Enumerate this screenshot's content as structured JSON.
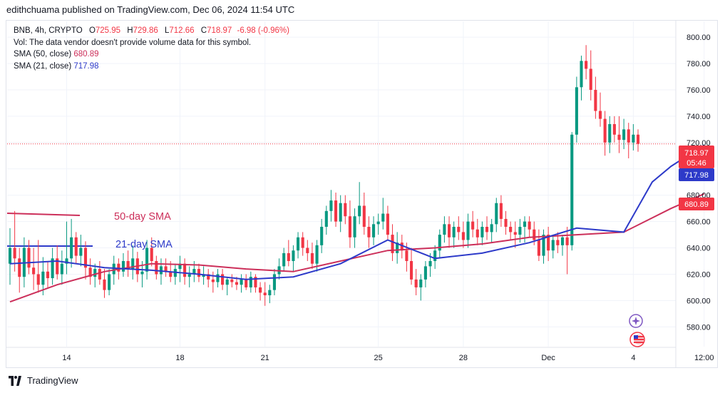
{
  "publisher_line": "edithchuama published on TradingView.com, Dec 06, 2024 11:54 UTC",
  "legend": {
    "symbol": "BNB, 4h, CRYPTO",
    "open_label": "O",
    "open": "725.95",
    "high_label": "H",
    "high": "729.86",
    "low_label": "L",
    "low": "712.66",
    "close_label": "C",
    "close": "718.97",
    "change": "-6.98 (-0.96%)",
    "volume_note": "Vol: The data vendor doesn't provide volume data for this symbol.",
    "sma50_label": "SMA (50, close)",
    "sma50_value": "680.89",
    "sma21_label": "SMA (21, close)",
    "sma21_value": "717.98"
  },
  "annotations": {
    "sma50_note": "50-day SMA",
    "sma21_note": "21-day SMA"
  },
  "price_badges": {
    "last_price": "718.97",
    "countdown": "05:46",
    "sma21": "717.98",
    "sma50": "680.89"
  },
  "footer": {
    "brand": "TradingView"
  },
  "colors": {
    "up": "#089981",
    "down": "#f23645",
    "sma50": "#cc2f5a",
    "sma21": "#2d3ac9",
    "sma50_badge": "#f23645"
  },
  "chart_data": {
    "type": "candlestick",
    "title": "BNB, 4h, CRYPTO",
    "ylim": [
      565,
      812
    ],
    "y_ticks": [
      "580.00",
      "600.00",
      "620.00",
      "640.00",
      "660.00",
      "680.00",
      "700.00",
      "720.00",
      "740.00",
      "760.00",
      "780.00",
      "800.00"
    ],
    "x_ticks": [
      {
        "label": "14",
        "index": 12
      },
      {
        "label": "18",
        "index": 36
      },
      {
        "label": "21",
        "index": 54
      },
      {
        "label": "25",
        "index": 78
      },
      {
        "label": "28",
        "index": 96
      },
      {
        "label": "Dec",
        "index": 114
      },
      {
        "label": "4",
        "index": 132
      },
      {
        "label": "12:00",
        "index": 147
      }
    ],
    "candles": [
      [
        628,
        655,
        612,
        640
      ],
      [
        640,
        668,
        622,
        632
      ],
      [
        632,
        640,
        606,
        618
      ],
      [
        618,
        648,
        610,
        640
      ],
      [
        640,
        646,
        620,
        625
      ],
      [
        625,
        640,
        608,
        620
      ],
      [
        620,
        646,
        606,
        612
      ],
      [
        612,
        633,
        604,
        622
      ],
      [
        622,
        630,
        610,
        617
      ],
      [
        617,
        640,
        612,
        632
      ],
      [
        632,
        642,
        616,
        620
      ],
      [
        620,
        638,
        612,
        628
      ],
      [
        628,
        660,
        620,
        632
      ],
      [
        632,
        662,
        625,
        648
      ],
      [
        648,
        652,
        628,
        634
      ],
      [
        634,
        650,
        626,
        640
      ],
      [
        640,
        645,
        616,
        625
      ],
      [
        625,
        632,
        612,
        618
      ],
      [
        618,
        628,
        610,
        624
      ],
      [
        624,
        630,
        612,
        616
      ],
      [
        616,
        624,
        602,
        608
      ],
      [
        608,
        624,
        604,
        620
      ],
      [
        620,
        634,
        612,
        628
      ],
      [
        628,
        632,
        616,
        622
      ],
      [
        622,
        636,
        618,
        630
      ],
      [
        630,
        638,
        618,
        624
      ],
      [
        624,
        642,
        616,
        632
      ],
      [
        632,
        637,
        614,
        620
      ],
      [
        620,
        630,
        610,
        622
      ],
      [
        622,
        646,
        616,
        640
      ],
      [
        640,
        648,
        626,
        630
      ],
      [
        630,
        634,
        616,
        620
      ],
      [
        620,
        632,
        612,
        626
      ],
      [
        626,
        632,
        618,
        622
      ],
      [
        622,
        630,
        614,
        618
      ],
      [
        618,
        628,
        612,
        624
      ],
      [
        624,
        634,
        614,
        628
      ],
      [
        628,
        632,
        612,
        618
      ],
      [
        618,
        626,
        610,
        620
      ],
      [
        620,
        630,
        614,
        624
      ],
      [
        624,
        628,
        614,
        618
      ],
      [
        618,
        626,
        612,
        620
      ],
      [
        620,
        624,
        610,
        616
      ],
      [
        616,
        622,
        606,
        614
      ],
      [
        614,
        624,
        610,
        620
      ],
      [
        620,
        624,
        608,
        612
      ],
      [
        612,
        618,
        604,
        616
      ],
      [
        616,
        620,
        610,
        614
      ],
      [
        614,
        618,
        608,
        612
      ],
      [
        612,
        620,
        606,
        616
      ],
      [
        616,
        620,
        608,
        610
      ],
      [
        610,
        622,
        606,
        618
      ],
      [
        618,
        620,
        606,
        610
      ],
      [
        610,
        614,
        600,
        606
      ],
      [
        606,
        614,
        596,
        604
      ],
      [
        604,
        612,
        598,
        608
      ],
      [
        608,
        624,
        604,
        620
      ],
      [
        620,
        632,
        616,
        626
      ],
      [
        626,
        640,
        622,
        636
      ],
      [
        636,
        646,
        626,
        630
      ],
      [
        630,
        642,
        622,
        638
      ],
      [
        638,
        652,
        632,
        648
      ],
      [
        648,
        652,
        634,
        640
      ],
      [
        640,
        646,
        630,
        636
      ],
      [
        636,
        644,
        624,
        628
      ],
      [
        628,
        646,
        622,
        642
      ],
      [
        642,
        662,
        636,
        656
      ],
      [
        656,
        672,
        650,
        668
      ],
      [
        668,
        684,
        660,
        676
      ],
      [
        676,
        682,
        656,
        660
      ],
      [
        660,
        680,
        652,
        674
      ],
      [
        674,
        680,
        658,
        664
      ],
      [
        664,
        676,
        640,
        648
      ],
      [
        648,
        670,
        640,
        664
      ],
      [
        664,
        690,
        658,
        672
      ],
      [
        672,
        682,
        650,
        656
      ],
      [
        656,
        664,
        640,
        648
      ],
      [
        648,
        664,
        642,
        658
      ],
      [
        658,
        666,
        650,
        660
      ],
      [
        660,
        678,
        654,
        666
      ],
      [
        666,
        672,
        646,
        650
      ],
      [
        650,
        658,
        630,
        636
      ],
      [
        636,
        652,
        628,
        644
      ],
      [
        644,
        650,
        632,
        638
      ],
      [
        638,
        644,
        622,
        630
      ],
      [
        630,
        640,
        612,
        616
      ],
      [
        616,
        624,
        604,
        610
      ],
      [
        610,
        620,
        600,
        616
      ],
      [
        616,
        630,
        610,
        626
      ],
      [
        626,
        636,
        618,
        630
      ],
      [
        630,
        642,
        624,
        638
      ],
      [
        638,
        654,
        632,
        650
      ],
      [
        650,
        664,
        644,
        658
      ],
      [
        658,
        664,
        640,
        648
      ],
      [
        648,
        660,
        640,
        656
      ],
      [
        656,
        664,
        646,
        652
      ],
      [
        652,
        660,
        640,
        646
      ],
      [
        646,
        666,
        640,
        660
      ],
      [
        660,
        668,
        648,
        654
      ],
      [
        654,
        662,
        642,
        648
      ],
      [
        648,
        660,
        642,
        656
      ],
      [
        656,
        664,
        646,
        652
      ],
      [
        652,
        662,
        644,
        658
      ],
      [
        658,
        678,
        652,
        674
      ],
      [
        674,
        680,
        656,
        662
      ],
      [
        662,
        668,
        650,
        656
      ],
      [
        656,
        660,
        646,
        652
      ],
      [
        652,
        660,
        640,
        650
      ],
      [
        650,
        662,
        644,
        656
      ],
      [
        656,
        664,
        644,
        660
      ],
      [
        660,
        664,
        648,
        654
      ],
      [
        654,
        660,
        642,
        646
      ],
      [
        646,
        654,
        630,
        634
      ],
      [
        634,
        654,
        628,
        650
      ],
      [
        650,
        656,
        630,
        638
      ],
      [
        638,
        650,
        632,
        646
      ],
      [
        646,
        652,
        636,
        642
      ],
      [
        642,
        650,
        634,
        648
      ],
      [
        648,
        656,
        620,
        642
      ],
      [
        642,
        728,
        638,
        726
      ],
      [
        726,
        770,
        720,
        762
      ],
      [
        762,
        786,
        752,
        782
      ],
      [
        782,
        794,
        768,
        776
      ],
      [
        776,
        790,
        752,
        760
      ],
      [
        760,
        770,
        738,
        744
      ],
      [
        744,
        758,
        732,
        738
      ],
      [
        738,
        744,
        710,
        720
      ],
      [
        720,
        740,
        712,
        734
      ],
      [
        734,
        740,
        720,
        726
      ],
      [
        726,
        740,
        712,
        722
      ],
      [
        722,
        738,
        715,
        730
      ],
      [
        730,
        735,
        708,
        720
      ],
      [
        720,
        734,
        714,
        726
      ],
      [
        726,
        730,
        713,
        719
      ]
    ],
    "series": [
      {
        "name": "SMA (50, close)",
        "x": [
          0,
          10,
          20,
          30,
          40,
          50,
          60,
          70,
          80,
          90,
          100,
          110,
          120,
          130,
          140,
          147
        ],
        "y": [
          599,
          612,
          622,
          628,
          627,
          624,
          622,
          630,
          638,
          640,
          643,
          648,
          650,
          652,
          670,
          681
        ]
      },
      {
        "name": "SMA (21, close)",
        "x": [
          0,
          10,
          20,
          30,
          40,
          50,
          60,
          70,
          80,
          90,
          100,
          110,
          120,
          130,
          136,
          140,
          147
        ],
        "y": [
          628,
          630,
          625,
          623,
          620,
          616,
          618,
          628,
          646,
          632,
          636,
          644,
          655,
          652,
          690,
          702,
          718
        ]
      }
    ]
  }
}
